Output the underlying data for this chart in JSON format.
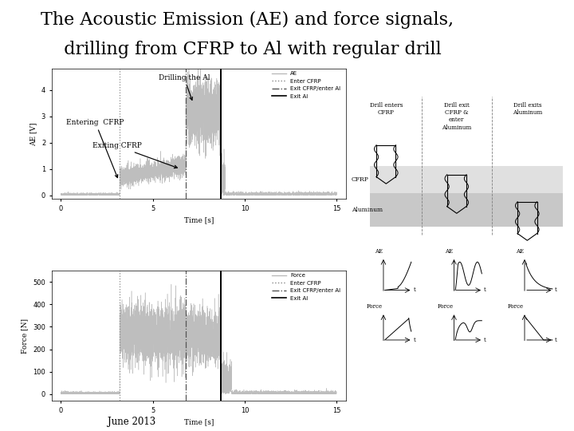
{
  "title_line1": "The Acoustic Emission (AE) and force signals,",
  "title_line2": "  drilling from CFRP to Al with regular drill",
  "title_fontsize": 16,
  "title_font": "serif",
  "background_color": "#ffffff",
  "ae_ylabel": "AE [V]",
  "ae_xlabel": "Time [s]",
  "ae_yticks": [
    0,
    1,
    2,
    3,
    4
  ],
  "ae_ylim": [
    -0.15,
    4.8
  ],
  "ae_xlim": [
    -0.5,
    15.5
  ],
  "ae_xticks": [
    0,
    5,
    10,
    15
  ],
  "force_ylabel": "Force [N]",
  "force_xlabel": "Time [s]",
  "force_yticks": [
    0,
    100,
    200,
    300,
    400,
    500
  ],
  "force_ylim": [
    -30,
    550
  ],
  "force_xlim": [
    -0.5,
    15.5
  ],
  "force_xticks": [
    0,
    5,
    10,
    15
  ],
  "t_enter_cfrp": 3.2,
  "t_exit_cfrp_enter_al": 6.8,
  "t_exit_al": 8.7,
  "signal_color": "#bbbbbb",
  "line_color_dotted": "#888888",
  "line_color_dashdot": "#555555",
  "line_color_solid": "#000000"
}
